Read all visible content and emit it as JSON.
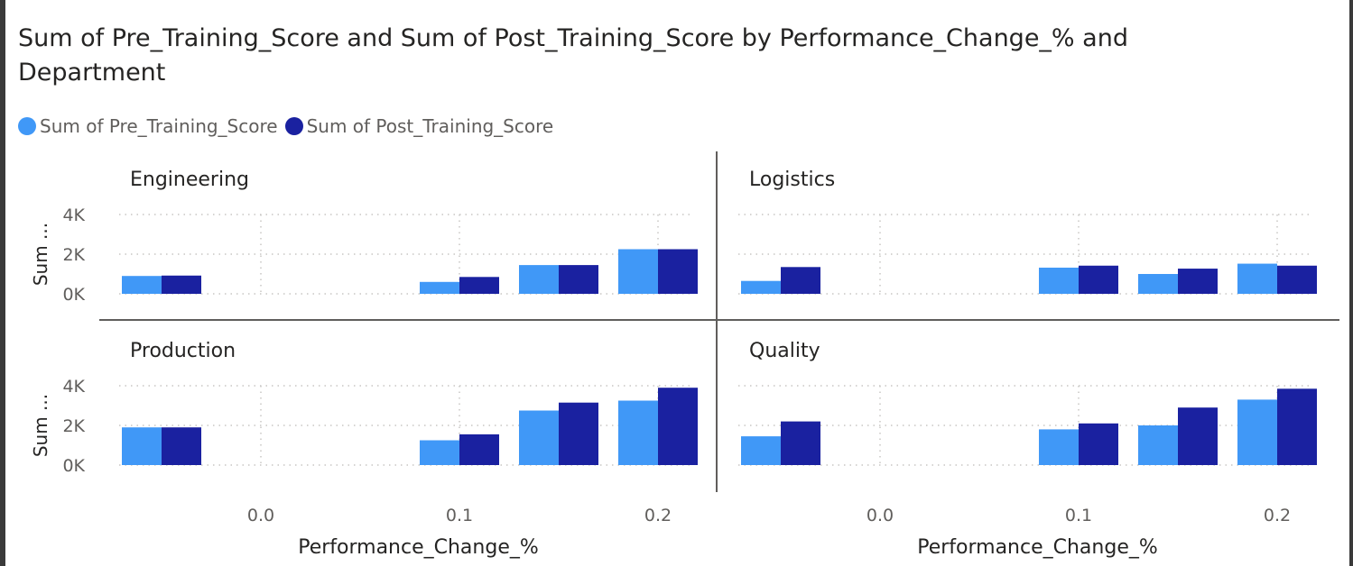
{
  "title": "Sum of Pre_Training_Score and Sum of Post_Training_Score by Performance_Change_% and Department",
  "legend": [
    {
      "label": "Sum of Pre_Training_Score",
      "color": "#4098f7"
    },
    {
      "label": "Sum of Post_Training_Score",
      "color": "#1a21a0"
    }
  ],
  "chart_data": {
    "type": "bar",
    "title": "Sum of Pre_Training_Score and Sum of Post_Training_Score by Performance_Change_% and Department",
    "xlabel": "Performance_Change_%",
    "ylabel": "Sum ...",
    "x_ticks": [
      0.0,
      0.1,
      0.2
    ],
    "x_tick_labels": [
      "0.0",
      "0.1",
      "0.2"
    ],
    "ylim": [
      0,
      4000
    ],
    "y_ticks": [
      0,
      2000,
      4000
    ],
    "y_tick_labels": [
      "0K",
      "2K",
      "4K"
    ],
    "grid": true,
    "legend_position": "top-left",
    "series_names": [
      "Sum of Pre_Training_Score",
      "Sum of Post_Training_Score"
    ],
    "x_categories": [
      -0.05,
      0.1,
      0.15,
      0.2
    ],
    "panels": [
      {
        "department": "Engineering",
        "series": [
          {
            "name": "Sum of Pre_Training_Score",
            "values": [
              900,
              600,
              1450,
              2250
            ]
          },
          {
            "name": "Sum of Post_Training_Score",
            "values": [
              920,
              850,
              1450,
              2250
            ]
          }
        ]
      },
      {
        "department": "Logistics",
        "series": [
          {
            "name": "Sum of Pre_Training_Score",
            "values": [
              650,
              1320,
              1000,
              1520
            ]
          },
          {
            "name": "Sum of Post_Training_Score",
            "values": [
              1350,
              1420,
              1270,
              1420
            ]
          }
        ]
      },
      {
        "department": "Production",
        "series": [
          {
            "name": "Sum of Pre_Training_Score",
            "values": [
              1900,
              1250,
              2750,
              3250
            ]
          },
          {
            "name": "Sum of Post_Training_Score",
            "values": [
              1900,
              1550,
              3150,
              3900
            ]
          }
        ]
      },
      {
        "department": "Quality",
        "series": [
          {
            "name": "Sum of Pre_Training_Score",
            "values": [
              1450,
              1800,
              2000,
              3300
            ]
          },
          {
            "name": "Sum of Post_Training_Score",
            "values": [
              2200,
              2100,
              2900,
              3850
            ]
          }
        ]
      }
    ]
  }
}
